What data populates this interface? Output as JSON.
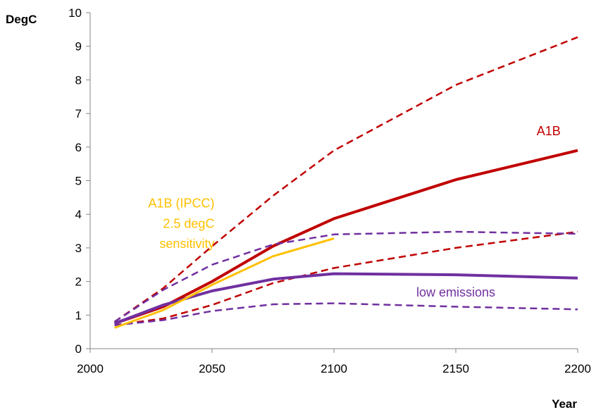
{
  "chart_data": {
    "type": "line",
    "xlabel": "Year",
    "ylabel": "DegC",
    "xlim": [
      2000,
      2200
    ],
    "ylim": [
      0,
      10
    ],
    "xticks": [
      "2000",
      "2050",
      "2100",
      "2150",
      "2200"
    ],
    "yticks": [
      "0",
      "1",
      "2",
      "3",
      "4",
      "5",
      "6",
      "7",
      "8",
      "9",
      "10"
    ],
    "grid": false,
    "legend": "none",
    "colors": {
      "red": "#c00000",
      "purple": "#7030a0",
      "yellow": "#ffc000"
    },
    "series": [
      {
        "name": "A1B",
        "color": "#c00000",
        "style": "solid",
        "x": [
          2010,
          2030,
          2050,
          2075,
          2100,
          2150,
          2200
        ],
        "y": [
          0.75,
          1.25,
          2.0,
          3.05,
          3.87,
          5.03,
          5.9
        ]
      },
      {
        "color": "#c00000",
        "style": "dashed",
        "x": [
          2010,
          2030,
          2050,
          2075,
          2100,
          2150,
          2200
        ],
        "y": [
          0.8,
          1.8,
          3.05,
          4.55,
          5.9,
          7.85,
          9.27
        ]
      },
      {
        "color": "#c00000",
        "style": "dashed",
        "x": [
          2010,
          2030,
          2050,
          2075,
          2100,
          2150,
          2200
        ],
        "y": [
          0.7,
          0.9,
          1.3,
          1.95,
          2.4,
          3.0,
          3.48
        ]
      },
      {
        "name": "low emissions",
        "color": "#7030a0",
        "style": "solid",
        "x": [
          2010,
          2030,
          2050,
          2075,
          2100,
          2150,
          2200
        ],
        "y": [
          0.75,
          1.3,
          1.72,
          2.07,
          2.23,
          2.2,
          2.1
        ]
      },
      {
        "color": "#7030a0",
        "style": "dashed",
        "x": [
          2010,
          2030,
          2050,
          2075,
          2100,
          2150,
          2200
        ],
        "y": [
          0.8,
          1.75,
          2.5,
          3.1,
          3.4,
          3.48,
          3.42
        ]
      },
      {
        "color": "#7030a0",
        "style": "dashed",
        "x": [
          2010,
          2030,
          2050,
          2075,
          2100,
          2150,
          2200
        ],
        "y": [
          0.7,
          0.85,
          1.12,
          1.32,
          1.35,
          1.25,
          1.17
        ]
      },
      {
        "name": "A1B (IPCC) 2.5 degC sensitivity",
        "color": "#ffc000",
        "style": "solid",
        "x": [
          2010,
          2030,
          2050,
          2075,
          2100
        ],
        "y": [
          0.62,
          1.15,
          1.9,
          2.75,
          3.28
        ]
      }
    ],
    "annotations": [
      {
        "text": "A1B",
        "color": "#c00000",
        "x": 2193,
        "y": 6.35,
        "anchor": "end"
      },
      {
        "text": "A1B (IPCC)",
        "color": "#ffc000",
        "x": 2051,
        "y": 4.2,
        "anchor": "end"
      },
      {
        "text": "2.5 degC",
        "color": "#ffc000",
        "x": 2051,
        "y": 3.6,
        "anchor": "end"
      },
      {
        "text": "sensitivity",
        "color": "#ffc000",
        "x": 2051,
        "y": 3.0,
        "anchor": "end"
      },
      {
        "text": "low emissions",
        "color": "#7030a0",
        "x": 2150,
        "y": 1.55,
        "anchor": "middle"
      }
    ]
  }
}
